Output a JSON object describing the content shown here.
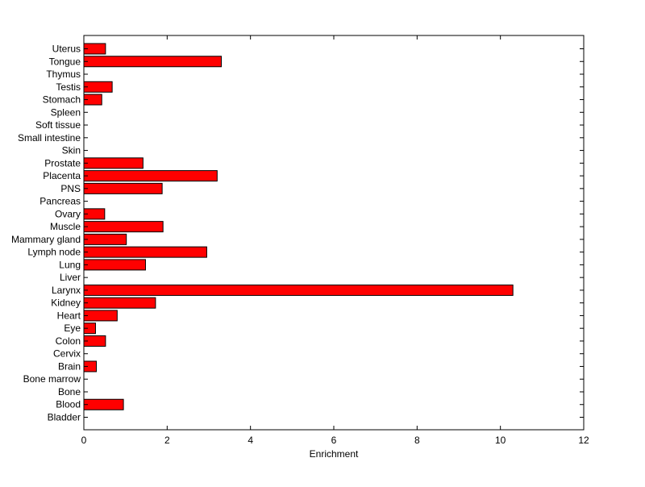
{
  "chart_data": {
    "type": "bar",
    "orientation": "horizontal",
    "categories": [
      "Uterus",
      "Tongue",
      "Thymus",
      "Testis",
      "Stomach",
      "Spleen",
      "Soft tissue",
      "Small intestine",
      "Skin",
      "Prostate",
      "Placenta",
      "PNS",
      "Pancreas",
      "Ovary",
      "Muscle",
      "Mammary gland",
      "Lymph node",
      "Lung",
      "Liver",
      "Larynx",
      "Kidney",
      "Heart",
      "Eye",
      "Colon",
      "Cervix",
      "Brain",
      "Bone marrow",
      "Bone",
      "Blood",
      "Bladder"
    ],
    "values": [
      0.52,
      3.3,
      0,
      0.68,
      0.43,
      0,
      0,
      0,
      0,
      1.42,
      3.2,
      1.88,
      0,
      0.5,
      1.9,
      1.02,
      2.95,
      1.48,
      0,
      10.3,
      1.72,
      0.8,
      0.28,
      0.52,
      0,
      0.3,
      0,
      0,
      0.95,
      0
    ],
    "title": "",
    "xlabel": "Enrichment",
    "ylabel": "",
    "xlim": [
      0,
      12
    ],
    "xticks": [
      "0",
      "2",
      "4",
      "6",
      "8",
      "10",
      "12"
    ],
    "grid": false,
    "bar_color": "#ff0000"
  }
}
